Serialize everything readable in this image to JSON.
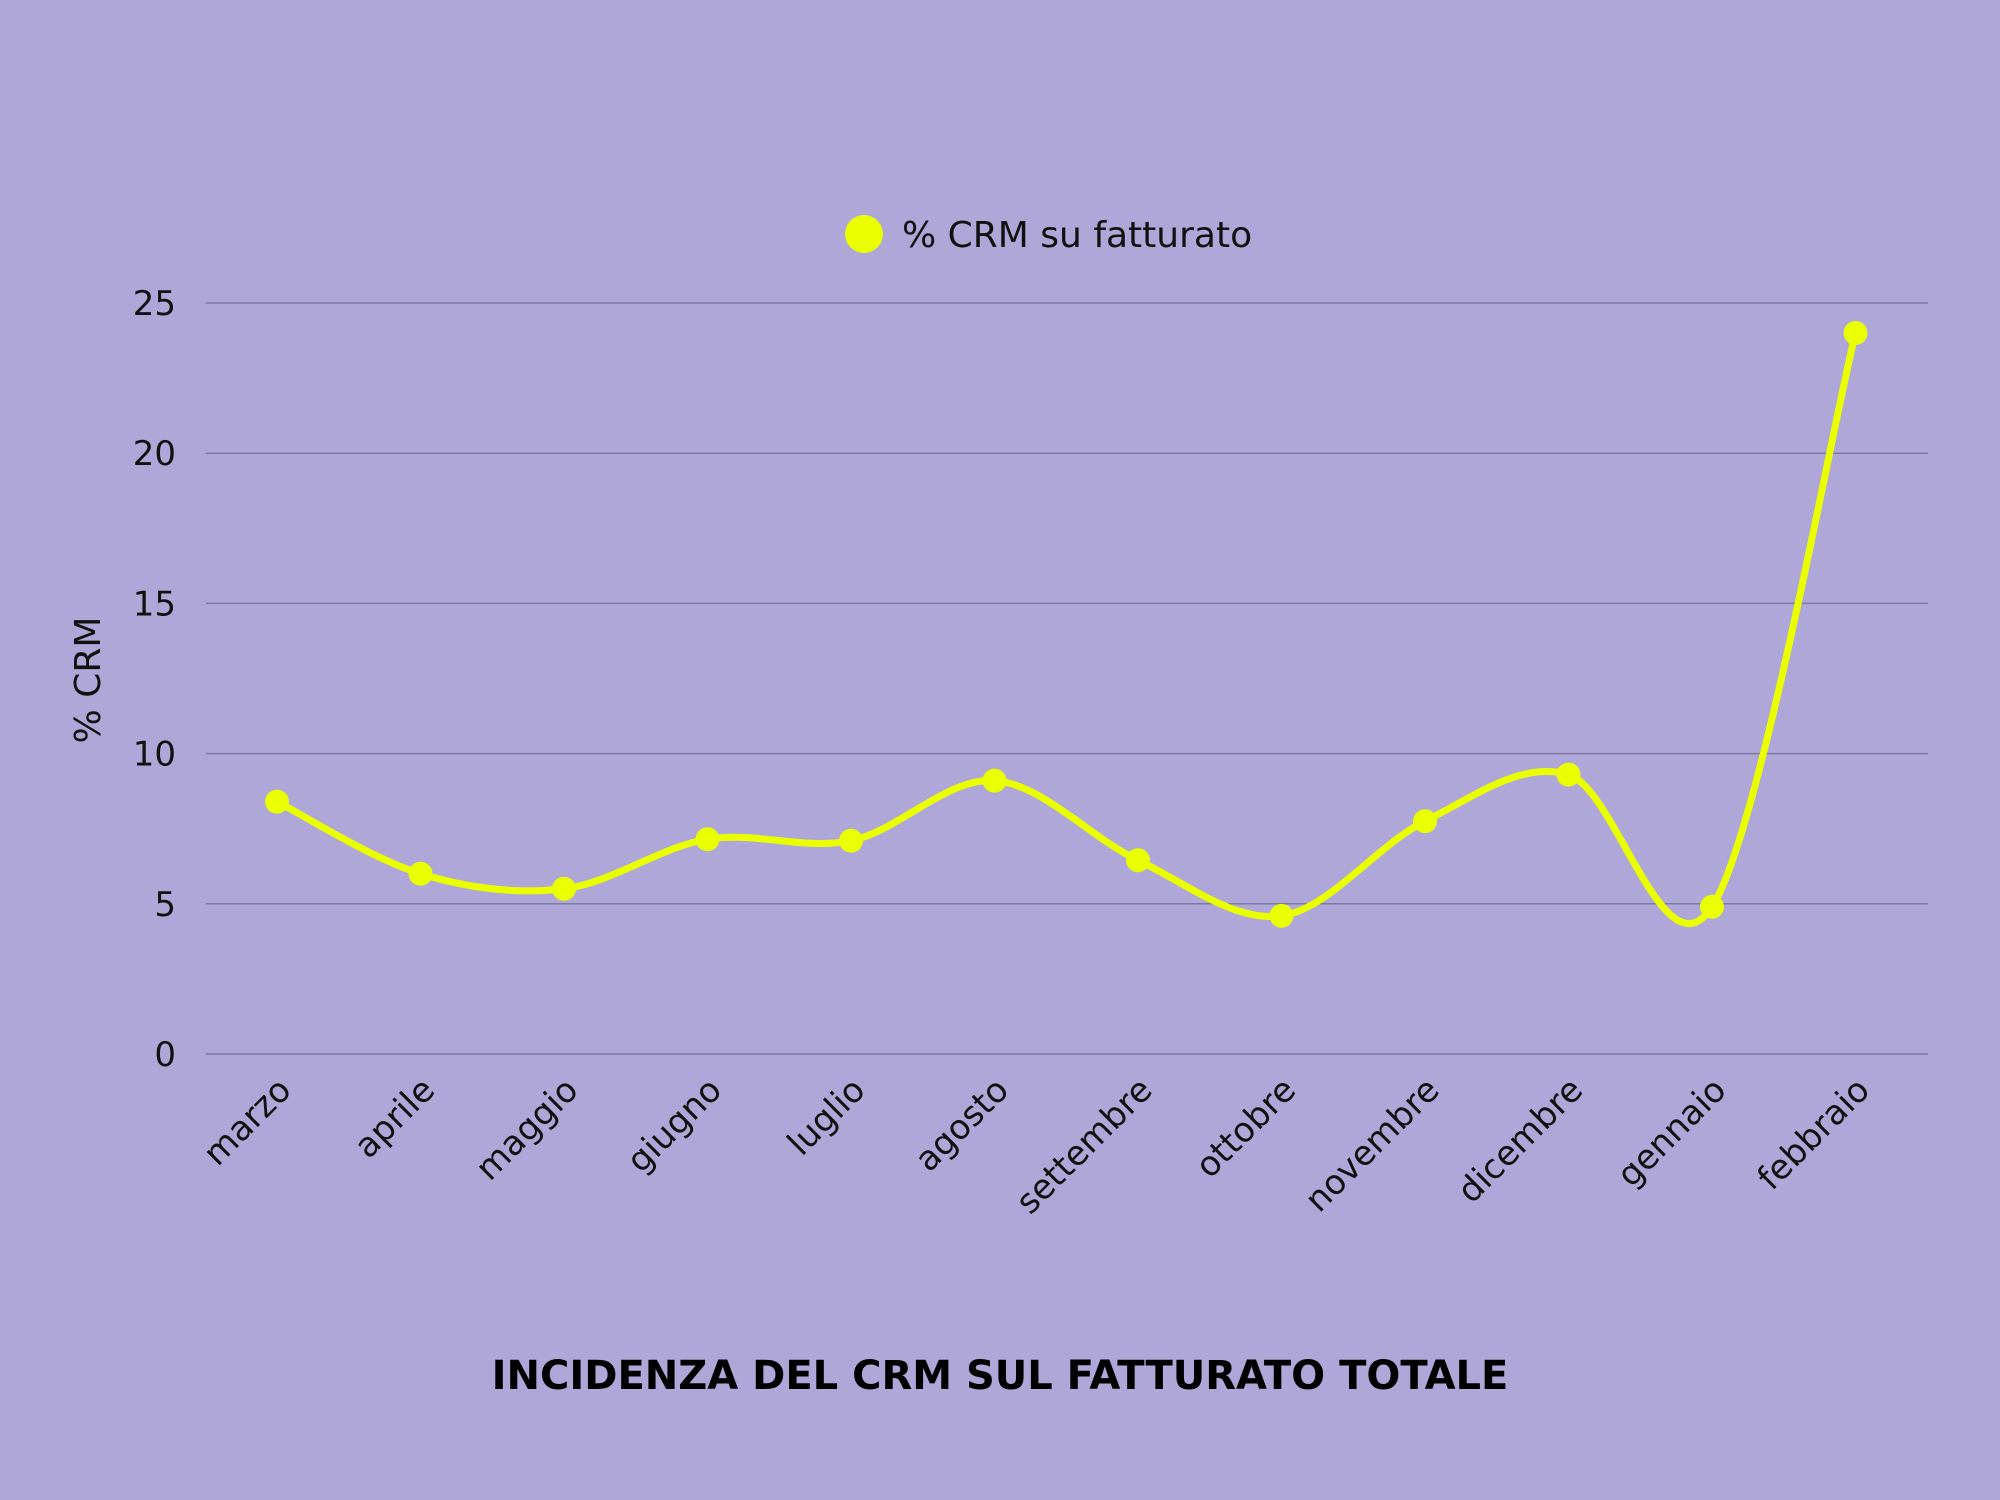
{
  "chart_data": {
    "type": "line",
    "title": "INCIDENZA DEL CRM SUL FATTURATO TOTALE",
    "xlabel": "",
    "ylabel": "% CRM",
    "categories": [
      "marzo",
      "aprile",
      "maggio",
      "giugno",
      "luglio",
      "agosto",
      "settembre",
      "ottobre",
      "novembre",
      "dicembre",
      "gennaio",
      "febbraio"
    ],
    "series": [
      {
        "name": "% CRM su fatturato",
        "color": "#eaff00",
        "values": [
          8.4,
          6.0,
          5.5,
          7.15,
          7.1,
          9.1,
          6.45,
          4.6,
          7.75,
          9.3,
          4.9,
          24.0
        ]
      }
    ],
    "ylim": [
      0,
      25
    ],
    "yticks": [
      0,
      5,
      10,
      15,
      20,
      25
    ],
    "grid": true,
    "legend_position": "top-center",
    "smooth": true
  },
  "colors": {
    "background": "#aea7d8",
    "gridline": "#7d7aa6",
    "line": "#eaff00",
    "text": "#111111"
  }
}
